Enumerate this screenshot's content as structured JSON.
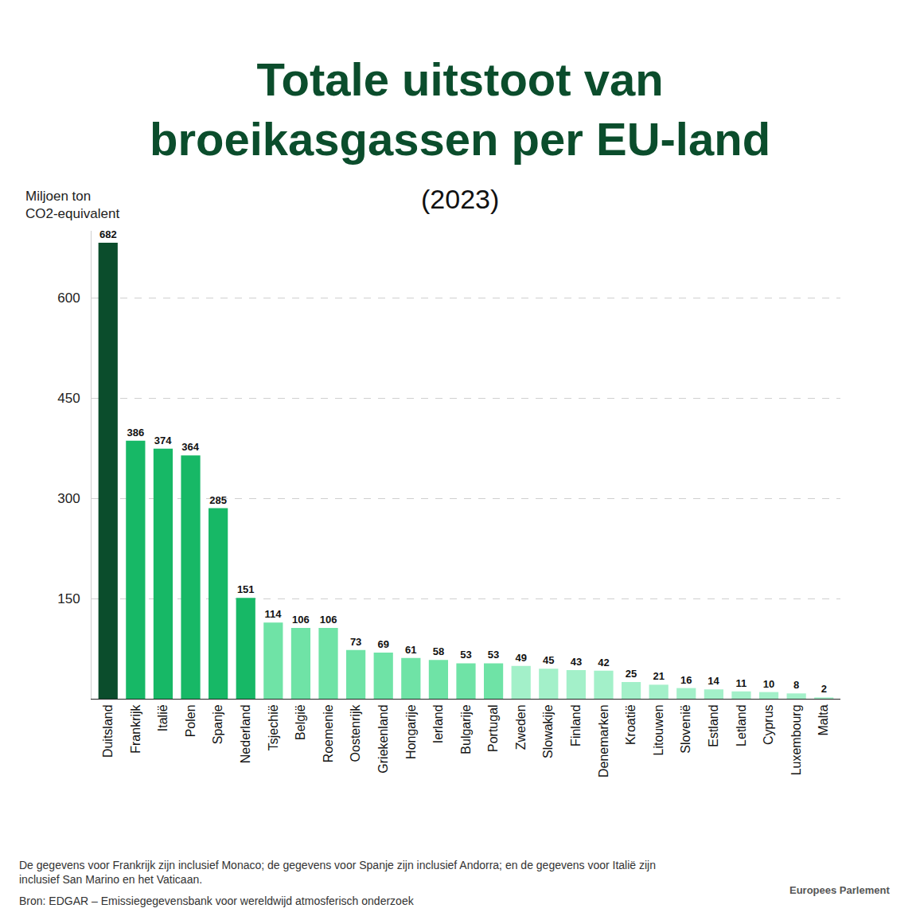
{
  "chart_data": {
    "type": "bar",
    "title": [
      "Totale uitstoot van",
      "broeikasgassen per EU-land"
    ],
    "subtitle": "(2023)",
    "y_label": [
      "Miljoen ton",
      "CO2-equivalent"
    ],
    "categories": [
      "Duitsland",
      "Frankrijk",
      "Italië",
      "Polen",
      "Spanje",
      "Nederland",
      "Tsjechië",
      "België",
      "Roemenie",
      "Oostenrijk",
      "Griekenland",
      "Hongarije",
      "Ierland",
      "Bulgarije",
      "Portugal",
      "Zweden",
      "Slowakije",
      "Finland",
      "Denemarken",
      "Kroatië",
      "Litouwen",
      "Slovenië",
      "Estland",
      "Letland",
      "Cyprus",
      "Luxembourg",
      "Malta"
    ],
    "values": [
      682,
      386,
      374,
      364,
      285,
      151,
      114,
      106,
      106,
      73,
      69,
      61,
      58,
      53,
      53,
      49,
      45,
      43,
      42,
      25,
      21,
      16,
      14,
      11,
      10,
      8,
      2
    ],
    "colors": [
      "#0b4d2c",
      "#17b866",
      "#17b866",
      "#17b866",
      "#17b866",
      "#17b866",
      "#6fe3a6",
      "#6fe3a6",
      "#6fe3a6",
      "#6fe3a6",
      "#6fe3a6",
      "#6fe3a6",
      "#6fe3a6",
      "#6fe3a6",
      "#6fe3a6",
      "#a3f0c9",
      "#a3f0c9",
      "#a3f0c9",
      "#a3f0c9",
      "#a3f0c9",
      "#a3f0c9",
      "#a3f0c9",
      "#a3f0c9",
      "#a3f0c9",
      "#a3f0c9",
      "#a3f0c9",
      "#a3f0c9"
    ],
    "ylim": [
      0,
      700
    ],
    "yticks": [
      150,
      300,
      450,
      600
    ],
    "grid": true,
    "data_labels": true,
    "footnote": [
      "De gegevens voor Frankrijk zijn inclusief Monaco; de gegevens voor Spanje zijn inclusief Andorra; en de gegevens voor Italië zijn",
      "inclusief San Marino en het Vaticaan."
    ],
    "source": "Bron: EDGAR – Emissiegegevensbank voor wereldwijd atmosferisch onderzoek",
    "credit": "Europees Parlement"
  }
}
